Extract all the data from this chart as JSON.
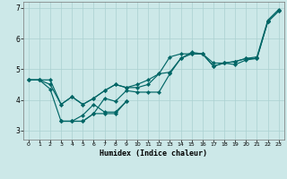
{
  "xlabel": "Humidex (Indice chaleur)",
  "ylabel": "",
  "bg_color": "#cce8e8",
  "line_color": "#006666",
  "grid_color": "#aad0d0",
  "xlim": [
    -0.5,
    23.5
  ],
  "ylim": [
    2.7,
    7.2
  ],
  "xticks": [
    0,
    1,
    2,
    3,
    4,
    5,
    6,
    7,
    8,
    9,
    10,
    11,
    12,
    13,
    14,
    15,
    16,
    17,
    18,
    19,
    20,
    21,
    22,
    23
  ],
  "yticks": [
    3,
    4,
    5,
    6,
    7
  ],
  "series": [
    {
      "x": [
        0,
        1,
        2,
        3,
        4,
        5,
        6,
        7,
        8,
        9,
        10,
        11,
        12,
        13,
        14,
        15,
        16,
        17,
        18,
        19,
        20,
        21,
        22,
        23
      ],
      "y": [
        4.65,
        4.65,
        4.65,
        3.85,
        4.1,
        3.85,
        4.05,
        4.3,
        4.5,
        4.4,
        4.5,
        4.65,
        4.85,
        5.4,
        5.5,
        5.5,
        5.5,
        5.2,
        5.2,
        5.25,
        5.35,
        5.4,
        6.6,
        6.95
      ]
    },
    {
      "x": [
        0,
        1,
        2,
        3,
        4,
        5,
        6,
        7,
        8,
        9,
        10,
        11,
        12,
        13,
        14,
        15,
        16,
        17,
        18,
        19,
        20,
        21,
        22,
        23
      ],
      "y": [
        4.65,
        4.65,
        4.5,
        3.85,
        4.1,
        3.85,
        4.05,
        4.3,
        4.5,
        4.4,
        4.4,
        4.5,
        4.85,
        4.9,
        5.35,
        5.55,
        5.5,
        5.1,
        5.2,
        5.25,
        5.35,
        5.35,
        6.55,
        6.9
      ]
    },
    {
      "x": [
        0,
        1,
        2,
        3,
        4,
        5,
        6,
        7,
        8,
        9,
        10,
        11,
        12,
        13,
        14,
        15,
        16,
        17,
        18,
        19,
        20,
        21,
        22,
        23
      ],
      "y": [
        4.65,
        4.65,
        4.35,
        3.3,
        3.3,
        3.3,
        3.55,
        4.05,
        3.95,
        4.3,
        4.25,
        4.25,
        4.25,
        4.85,
        5.35,
        5.5,
        5.5,
        5.1,
        5.2,
        5.15,
        5.3,
        5.35,
        6.55,
        6.9
      ]
    },
    {
      "x": [
        3,
        4,
        5,
        6,
        7,
        8,
        9
      ],
      "y": [
        3.3,
        3.3,
        3.3,
        3.55,
        3.55,
        3.55,
        3.95
      ]
    },
    {
      "x": [
        3,
        4,
        5,
        6,
        7,
        8,
        9
      ],
      "y": [
        3.3,
        3.3,
        3.5,
        3.85,
        3.6,
        3.6,
        3.95
      ]
    }
  ]
}
